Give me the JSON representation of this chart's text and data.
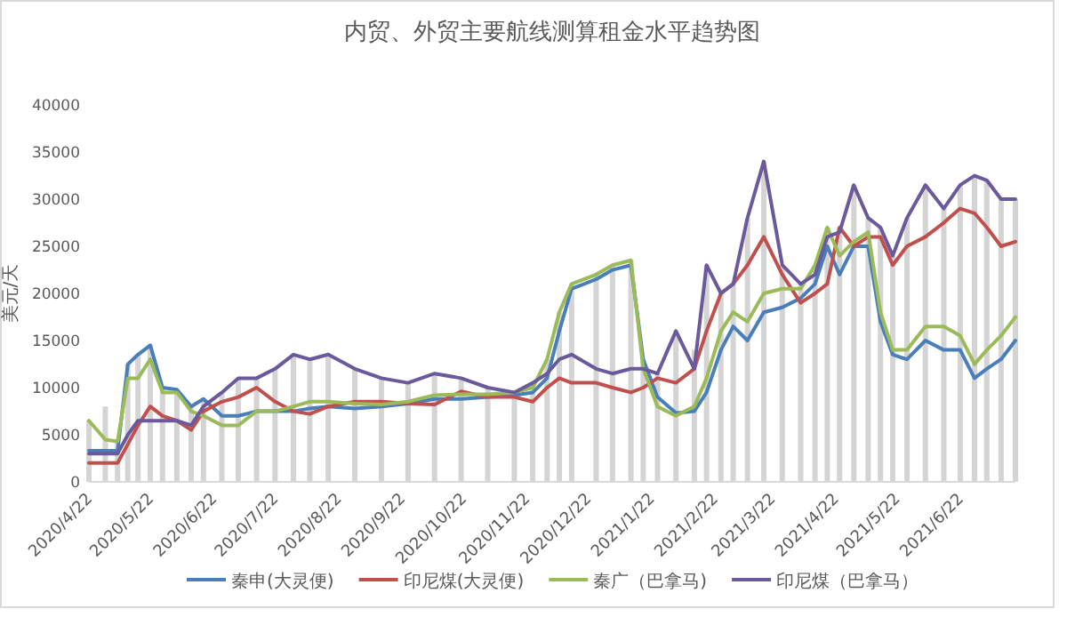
{
  "chart_data": {
    "type": "line",
    "title": "内贸、外贸主要航线测算租金水平趋势图",
    "ylabel": "美元/天",
    "x": [
      "2020-04-20",
      "2020-04-28",
      "2020-05-04",
      "2020-05-09",
      "2020-05-14",
      "2020-05-20",
      "2020-05-26",
      "2020-06-02",
      "2020-06-09",
      "2020-06-15",
      "2020-06-24",
      "2020-07-02",
      "2020-07-11",
      "2020-07-20",
      "2020-07-29",
      "2020-08-06",
      "2020-08-15",
      "2020-08-28",
      "2020-09-10",
      "2020-09-23",
      "2020-10-06",
      "2020-10-19",
      "2020-11-01",
      "2020-11-14",
      "2020-11-23",
      "2020-11-30",
      "2020-12-06",
      "2020-12-12",
      "2020-12-24",
      "2021-01-01",
      "2021-01-10",
      "2021-01-16",
      "2021-01-23",
      "2021-02-01",
      "2021-02-10",
      "2021-02-16",
      "2021-02-23",
      "2021-03-01",
      "2021-03-08",
      "2021-03-16",
      "2021-03-25",
      "2021-04-03",
      "2021-04-10",
      "2021-04-16",
      "2021-04-22",
      "2021-04-29",
      "2021-05-06",
      "2021-05-12",
      "2021-05-18",
      "2021-05-25",
      "2021-06-03",
      "2021-06-12",
      "2021-06-20",
      "2021-06-27",
      "2021-07-03",
      "2021-07-10",
      "2021-07-17"
    ],
    "xlim": [
      "2020-04-20",
      "2021-07-17"
    ],
    "xticks": [
      {
        "value": "2020-04-22",
        "label": "2020/4/22"
      },
      {
        "value": "2020-05-22",
        "label": "2020/5/22"
      },
      {
        "value": "2020-06-22",
        "label": "2020/6/22"
      },
      {
        "value": "2020-07-22",
        "label": "2020/7/22"
      },
      {
        "value": "2020-08-22",
        "label": "2020/8/22"
      },
      {
        "value": "2020-09-22",
        "label": "2020/9/22"
      },
      {
        "value": "2020-10-22",
        "label": "2020/10/22"
      },
      {
        "value": "2020-11-22",
        "label": "2020/11/22"
      },
      {
        "value": "2020-12-22",
        "label": "2020/12/22"
      },
      {
        "value": "2021-01-22",
        "label": "2021/1/22"
      },
      {
        "value": "2021-02-22",
        "label": "2021/2/22"
      },
      {
        "value": "2021-03-22",
        "label": "2021/3/22"
      },
      {
        "value": "2021-04-22",
        "label": "2021/4/22"
      },
      {
        "value": "2021-05-22",
        "label": "2021/5/22"
      },
      {
        "value": "2021-06-22",
        "label": "2021/6/22"
      }
    ],
    "ylim": [
      0,
      40000
    ],
    "yticks": [
      0,
      5000,
      10000,
      15000,
      20000,
      25000,
      30000,
      35000,
      40000
    ],
    "grid": false,
    "legend": "bottom",
    "line_style": "solid",
    "series": [
      {
        "type": "bar",
        "color": "#d4d4d4",
        "values": [
          6500,
          8000,
          4300,
          12500,
          13500,
          14500,
          10000,
          9800,
          8000,
          8800,
          9500,
          11000,
          11000,
          12000,
          13500,
          13000,
          13500,
          12000,
          11000,
          10500,
          11500,
          11000,
          10000,
          9500,
          10500,
          13000,
          18000,
          21000,
          22000,
          23000,
          23500,
          13000,
          11500,
          16000,
          14000,
          23000,
          20000,
          21000,
          28000,
          34000,
          23000,
          21000,
          23000,
          27000,
          27000,
          31500,
          28000,
          27000,
          24000,
          28000,
          31500,
          29000,
          31500,
          32500,
          32000,
          30000,
          30000
        ]
      },
      {
        "name": "秦申(大灵便)",
        "color": "#4a7ebb",
        "values": [
          3300,
          3300,
          3300,
          12500,
          13500,
          14500,
          10000,
          9800,
          8000,
          8800,
          7000,
          7000,
          7500,
          7500,
          7500,
          7800,
          8000,
          7800,
          8000,
          8300,
          8800,
          8800,
          9000,
          9200,
          9500,
          11000,
          16000,
          20500,
          21500,
          22500,
          23000,
          13000,
          9000,
          7300,
          7500,
          9500,
          14000,
          16500,
          15000,
          18000,
          18500,
          19500,
          21000,
          25000,
          22000,
          25000,
          25000,
          17000,
          13500,
          13000,
          15000,
          14000,
          14000,
          11000,
          12000,
          13000,
          15000
        ]
      },
      {
        "name": "印尼煤(大灵便)",
        "color": "#c0504d",
        "values": [
          2000,
          2000,
          2000,
          4000,
          6000,
          8000,
          7000,
          6500,
          5500,
          7500,
          8500,
          9000,
          10000,
          8500,
          7500,
          7200,
          8000,
          8500,
          8500,
          8300,
          8200,
          9600,
          9000,
          9000,
          8500,
          10000,
          11000,
          10500,
          10500,
          10000,
          9500,
          10000,
          11000,
          10500,
          12000,
          16000,
          20000,
          21000,
          23000,
          26000,
          22000,
          19000,
          20000,
          21000,
          27000,
          25000,
          26000,
          26000,
          23000,
          25000,
          26000,
          27500,
          29000,
          28500,
          27000,
          25000,
          25500
        ]
      },
      {
        "name": "秦广（巴拿马)",
        "color": "#9bbb59",
        "values": [
          6500,
          4500,
          4300,
          11000,
          11000,
          13000,
          9500,
          9500,
          7500,
          7000,
          6000,
          6000,
          7500,
          7500,
          8000,
          8500,
          8500,
          8300,
          8200,
          8500,
          9200,
          9300,
          9300,
          9500,
          10000,
          13000,
          18000,
          21000,
          22000,
          23000,
          23500,
          12000,
          8000,
          7000,
          8000,
          11000,
          16000,
          18000,
          17000,
          20000,
          20500,
          20500,
          23000,
          27000,
          24000,
          25500,
          26500,
          18000,
          14000,
          14000,
          16500,
          16500,
          15500,
          12500,
          14000,
          15500,
          17500
        ]
      },
      {
        "name": "印尼煤（巴拿马）",
        "color": "#6a5a9c",
        "values": [
          3000,
          3000,
          3000,
          5000,
          6500,
          6500,
          6500,
          6500,
          6000,
          8000,
          9500,
          11000,
          11000,
          12000,
          13500,
          13000,
          13500,
          12000,
          11000,
          10500,
          11500,
          11000,
          10000,
          9500,
          10500,
          11500,
          13000,
          13500,
          12000,
          11500,
          12000,
          12000,
          11500,
          16000,
          12000,
          23000,
          20000,
          21000,
          28000,
          34000,
          23000,
          21000,
          22000,
          26000,
          26500,
          31500,
          28000,
          27000,
          24000,
          28000,
          31500,
          29000,
          31500,
          32500,
          32000,
          30000,
          30000
        ]
      }
    ]
  }
}
